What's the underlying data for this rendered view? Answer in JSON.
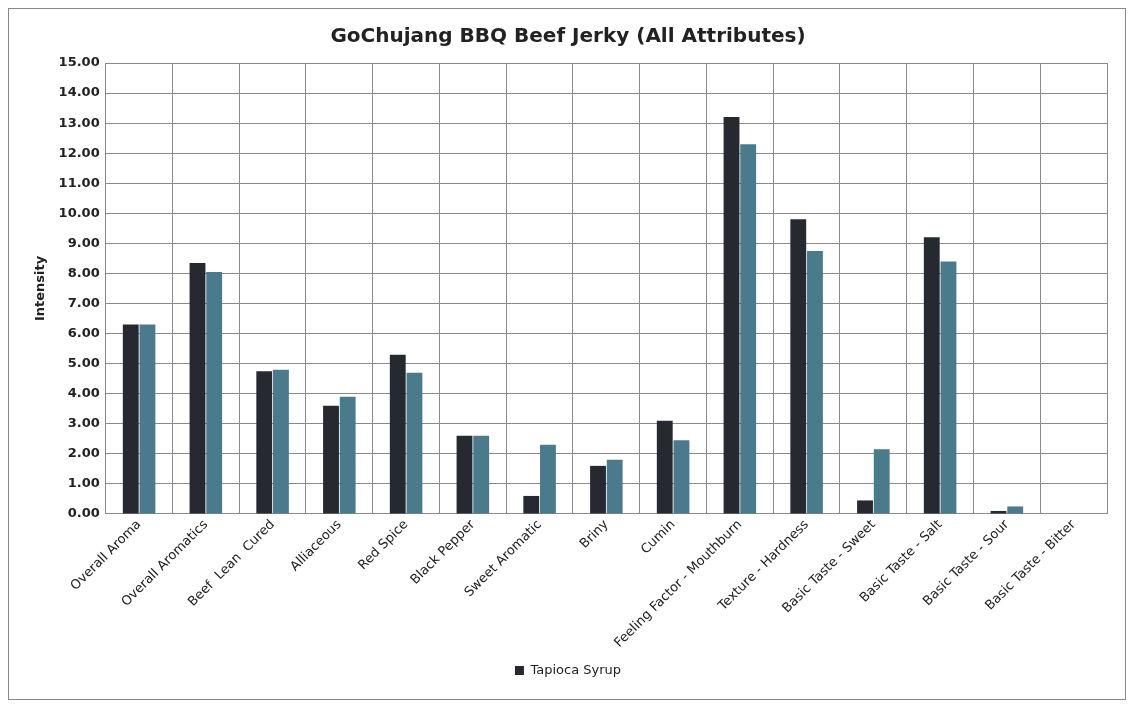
{
  "chart_data": {
    "type": "bar",
    "title": "GoChujang BBQ Beef Jerky (All Attributes)",
    "ylabel": "Intensity",
    "categories": [
      "Overall Aroma",
      "Overall Aromatics",
      "Beef  Lean  Cured",
      "Alliaceous",
      "Red Spice",
      "Black Pepper",
      "Sweet Aromatic",
      "Briny",
      "Cumin",
      "Feeling Factor - Mouthburn",
      "Texture - Hardness",
      "Basic Taste - Sweet",
      "Basic Taste - Salt",
      "Basic Taste - Sour",
      "Basic Taste - Bitter"
    ],
    "series": [
      {
        "name": "Tapioca Syrup",
        "color": "#262a30",
        "values": [
          6.3,
          8.35,
          4.75,
          3.6,
          5.3,
          2.6,
          0.6,
          1.6,
          3.1,
          13.2,
          9.8,
          0.45,
          9.2,
          0.1,
          0
        ]
      },
      {
        "color": "#4a7b8c",
        "values": [
          6.3,
          8.05,
          4.8,
          3.9,
          4.7,
          2.6,
          2.3,
          1.8,
          2.45,
          12.3,
          8.75,
          2.15,
          8.4,
          0.25,
          0
        ]
      }
    ],
    "ylim": [
      0,
      15
    ],
    "yticks": [
      {
        "value": 0,
        "label": "0.00"
      },
      {
        "value": 1,
        "label": "1.00"
      },
      {
        "value": 2,
        "label": "2.00"
      },
      {
        "value": 3,
        "label": "3.00"
      },
      {
        "value": 4,
        "label": "4.00"
      },
      {
        "value": 5,
        "label": "5.00"
      },
      {
        "value": 6,
        "label": "6.00"
      },
      {
        "value": 7,
        "label": "7.00"
      },
      {
        "value": 8,
        "label": "8.00"
      },
      {
        "value": 9,
        "label": "9.00"
      },
      {
        "value": 10,
        "label": "10.00"
      },
      {
        "value": 11,
        "label": "11.00"
      },
      {
        "value": 12,
        "label": "12.00"
      },
      {
        "value": 13,
        "label": "13.00"
      },
      {
        "value": 14,
        "label": "14.00"
      },
      {
        "value": 15,
        "label": "15.00"
      }
    ],
    "grid": true,
    "legend": "bottom"
  }
}
